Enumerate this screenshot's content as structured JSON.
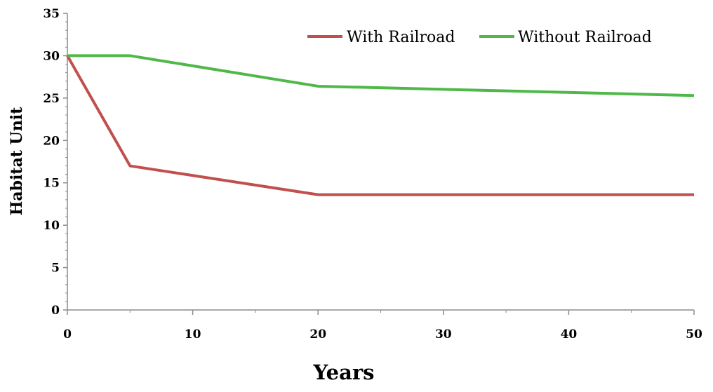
{
  "chart_data": {
    "type": "line",
    "title": "",
    "xlabel": "Years",
    "ylabel": "Habitat Unit",
    "xlim": [
      0,
      50
    ],
    "ylim": [
      0,
      35
    ],
    "x_ticks": [
      0,
      10,
      20,
      30,
      40,
      50
    ],
    "x_minor_step": 5,
    "y_ticks": [
      0,
      5,
      10,
      15,
      20,
      25,
      30,
      35
    ],
    "y_minor_step": 1,
    "grid": false,
    "legend_position": "top-right",
    "series": [
      {
        "name": "With Railroad",
        "color": "#c0504d",
        "points": [
          [
            0,
            30
          ],
          [
            5,
            17
          ],
          [
            20,
            13.6
          ],
          [
            50,
            13.6
          ]
        ]
      },
      {
        "name": "Without Railroad",
        "color": "#4fb848",
        "points": [
          [
            0,
            30
          ],
          [
            5,
            30
          ],
          [
            20,
            26.4
          ],
          [
            50,
            25.3
          ]
        ]
      }
    ]
  }
}
